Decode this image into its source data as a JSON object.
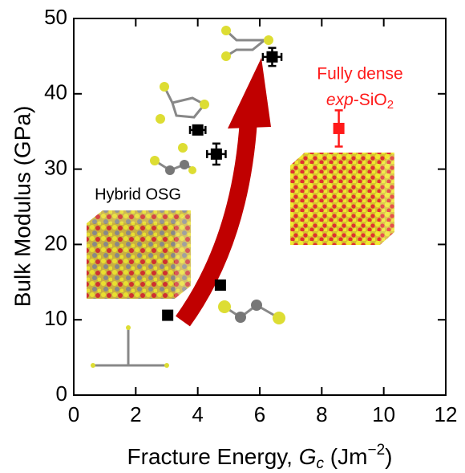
{
  "chart_data": {
    "type": "scatter",
    "xlabel": [
      "Fracture Energy, ",
      "G",
      "c",
      " (Jm",
      "−2",
      ")"
    ],
    "ylabel": "Bulk Modulus (GPa)",
    "xlim": [
      0,
      12
    ],
    "ylim": [
      0,
      50
    ],
    "xticks": [
      0,
      2,
      4,
      6,
      8,
      10,
      12
    ],
    "yticks": [
      0,
      10,
      20,
      30,
      40,
      50
    ],
    "series": [
      {
        "color": "#000000",
        "x": [
          3.03,
          4.73,
          4.0,
          4.6,
          6.4
        ],
        "values": [
          10.6,
          14.6,
          35.2,
          32.0,
          44.9
        ],
        "xerr": [
          null,
          null,
          0.25,
          0.3,
          0.3
        ],
        "yerr": [
          null,
          null,
          null,
          1.4,
          1.2
        ]
      },
      {
        "color": "#ff1a1a",
        "x": [
          8.55
        ],
        "values": [
          35.4
        ],
        "xerr": [
          null
        ],
        "yerr": [
          2.4
        ]
      }
    ],
    "annotations": {
      "hybrid": "Hybrid OSG",
      "dense": "Fully dense",
      "silica": [
        "exp",
        "-SiO",
        "2"
      ]
    }
  }
}
